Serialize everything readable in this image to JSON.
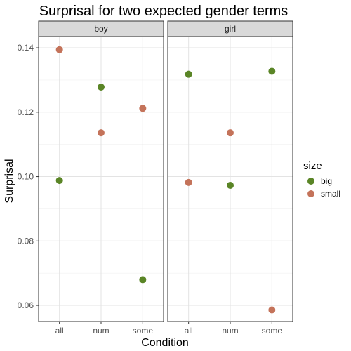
{
  "chart_data": {
    "type": "scatter",
    "title": "Surprisal for two expected gender terms",
    "xlabel": "Condition",
    "ylabel": "Surprisal",
    "categories": [
      "all",
      "num",
      "some"
    ],
    "yticks": [
      "0.06",
      "0.08",
      "0.10",
      "0.12",
      "0.14"
    ],
    "ylim": [
      0.055,
      0.1435
    ],
    "grid": true,
    "legend": {
      "title": "size",
      "position": "right"
    },
    "colors": {
      "big": "#5a8526",
      "small": "#c4735a"
    },
    "panels": [
      {
        "label": "boy",
        "series": [
          {
            "name": "big",
            "values": [
              0.0988,
              0.1278,
              0.068
            ]
          },
          {
            "name": "small",
            "values": [
              0.1394,
              0.1136,
              0.1212
            ]
          }
        ]
      },
      {
        "label": "girl",
        "series": [
          {
            "name": "big",
            "values": [
              0.1318,
              0.0973,
              0.1327
            ]
          },
          {
            "name": "small",
            "values": [
              0.0982,
              0.1136,
              0.0586
            ]
          }
        ]
      }
    ]
  }
}
